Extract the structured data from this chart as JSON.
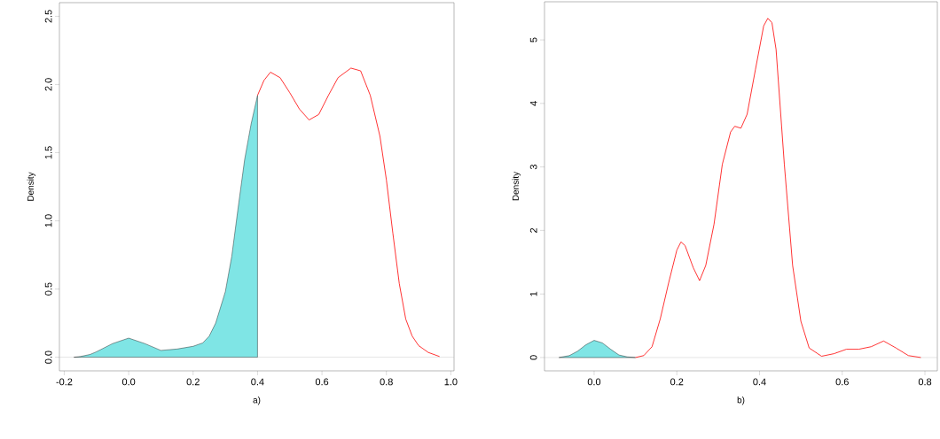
{
  "chart_data": [
    {
      "type": "line",
      "xlabel": "a)",
      "ylabel": "Density",
      "xlim": [
        -0.215,
        1.01
      ],
      "ylim": [
        -0.1,
        2.6
      ],
      "xticks": [
        {
          "value": -0.2,
          "label": "-0.2"
        },
        {
          "value": 0,
          "label": "0.0"
        },
        {
          "value": 0.2,
          "label": "0.2"
        },
        {
          "value": 0.4,
          "label": "0.4"
        },
        {
          "value": 0.6,
          "label": "0.6"
        },
        {
          "value": 0.8,
          "label": "0.8"
        },
        {
          "value": 1,
          "label": "1.0"
        }
      ],
      "yticks": [
        {
          "value": 0,
          "label": "0.0"
        },
        {
          "value": 0.5,
          "label": "0.5"
        },
        {
          "value": 1,
          "label": "1.0"
        },
        {
          "value": 1.5,
          "label": "1.5"
        },
        {
          "value": 2,
          "label": "2.0"
        },
        {
          "value": 2.5,
          "label": "2.5"
        }
      ],
      "grid": false,
      "legend": false,
      "marker": "none",
      "ref_lines": [
        {
          "axis": "y",
          "value": 0,
          "color": "#bebebe"
        }
      ],
      "series": [
        {
          "type": "area",
          "color": "#7fe5e5",
          "x": [
            -0.17,
            -0.15,
            -0.12,
            -0.1,
            -0.05,
            0.0,
            0.05,
            0.1,
            0.15,
            0.2,
            0.23,
            0.25,
            0.27,
            0.3,
            0.32,
            0.34,
            0.36,
            0.38,
            0.4
          ],
          "values": [
            0,
            0.005,
            0.02,
            0.04,
            0.1,
            0.14,
            0.1,
            0.05,
            0.06,
            0.08,
            0.105,
            0.155,
            0.25,
            0.48,
            0.74,
            1.1,
            1.45,
            1.71,
            1.92
          ]
        },
        {
          "color": "#ff0000",
          "x": [
            0.4,
            0.42,
            0.44,
            0.47,
            0.5,
            0.53,
            0.56,
            0.59,
            0.62,
            0.65,
            0.69,
            0.72,
            0.75,
            0.78,
            0.8,
            0.82,
            0.84,
            0.86,
            0.88,
            0.9,
            0.93,
            0.965
          ],
          "values": [
            1.92,
            2.03,
            2.09,
            2.05,
            1.94,
            1.82,
            1.74,
            1.78,
            1.92,
            2.05,
            2.12,
            2.1,
            1.92,
            1.62,
            1.3,
            0.91,
            0.54,
            0.28,
            0.155,
            0.085,
            0.035,
            0.005
          ]
        }
      ]
    },
    {
      "type": "line",
      "xlabel": "b)",
      "ylabel": "Density",
      "xlim": [
        -0.12,
        0.83
      ],
      "ylim": [
        -0.21,
        5.6
      ],
      "xticks": [
        {
          "value": 0,
          "label": "0.0"
        },
        {
          "value": 0.2,
          "label": "0.2"
        },
        {
          "value": 0.4,
          "label": "0.4"
        },
        {
          "value": 0.6,
          "label": "0.6"
        },
        {
          "value": 0.8,
          "label": "0.8"
        }
      ],
      "yticks": [
        0,
        1,
        2,
        3,
        4,
        5
      ],
      "grid": false,
      "legend": false,
      "marker": "none",
      "ref_lines": [
        {
          "axis": "y",
          "value": 0,
          "color": "#bebebe"
        }
      ],
      "series": [
        {
          "type": "area",
          "color": "#7fe5e5",
          "x": [
            -0.085,
            -0.06,
            -0.04,
            -0.02,
            0.0,
            0.02,
            0.04,
            0.06,
            0.08,
            0.1
          ],
          "values": [
            0,
            0.03,
            0.1,
            0.2,
            0.27,
            0.23,
            0.13,
            0.04,
            0.01,
            0
          ]
        },
        {
          "color": "#ff0000",
          "x": [
            0.1,
            0.12,
            0.14,
            0.16,
            0.18,
            0.2,
            0.21,
            0.22,
            0.24,
            0.255,
            0.27,
            0.29,
            0.31,
            0.33,
            0.34,
            0.355,
            0.37,
            0.39,
            0.41,
            0.42,
            0.43,
            0.44,
            0.46,
            0.48,
            0.5,
            0.52,
            0.55,
            0.58,
            0.61,
            0.64,
            0.67,
            0.7,
            0.73,
            0.76,
            0.79
          ],
          "values": [
            0,
            0.03,
            0.17,
            0.61,
            1.17,
            1.69,
            1.82,
            1.76,
            1.41,
            1.21,
            1.45,
            2.1,
            3.04,
            3.55,
            3.64,
            3.61,
            3.83,
            4.53,
            5.22,
            5.34,
            5.27,
            4.85,
            3.04,
            1.45,
            0.57,
            0.15,
            0.02,
            0.06,
            0.13,
            0.13,
            0.17,
            0.26,
            0.15,
            0.03,
            0
          ]
        }
      ]
    }
  ]
}
